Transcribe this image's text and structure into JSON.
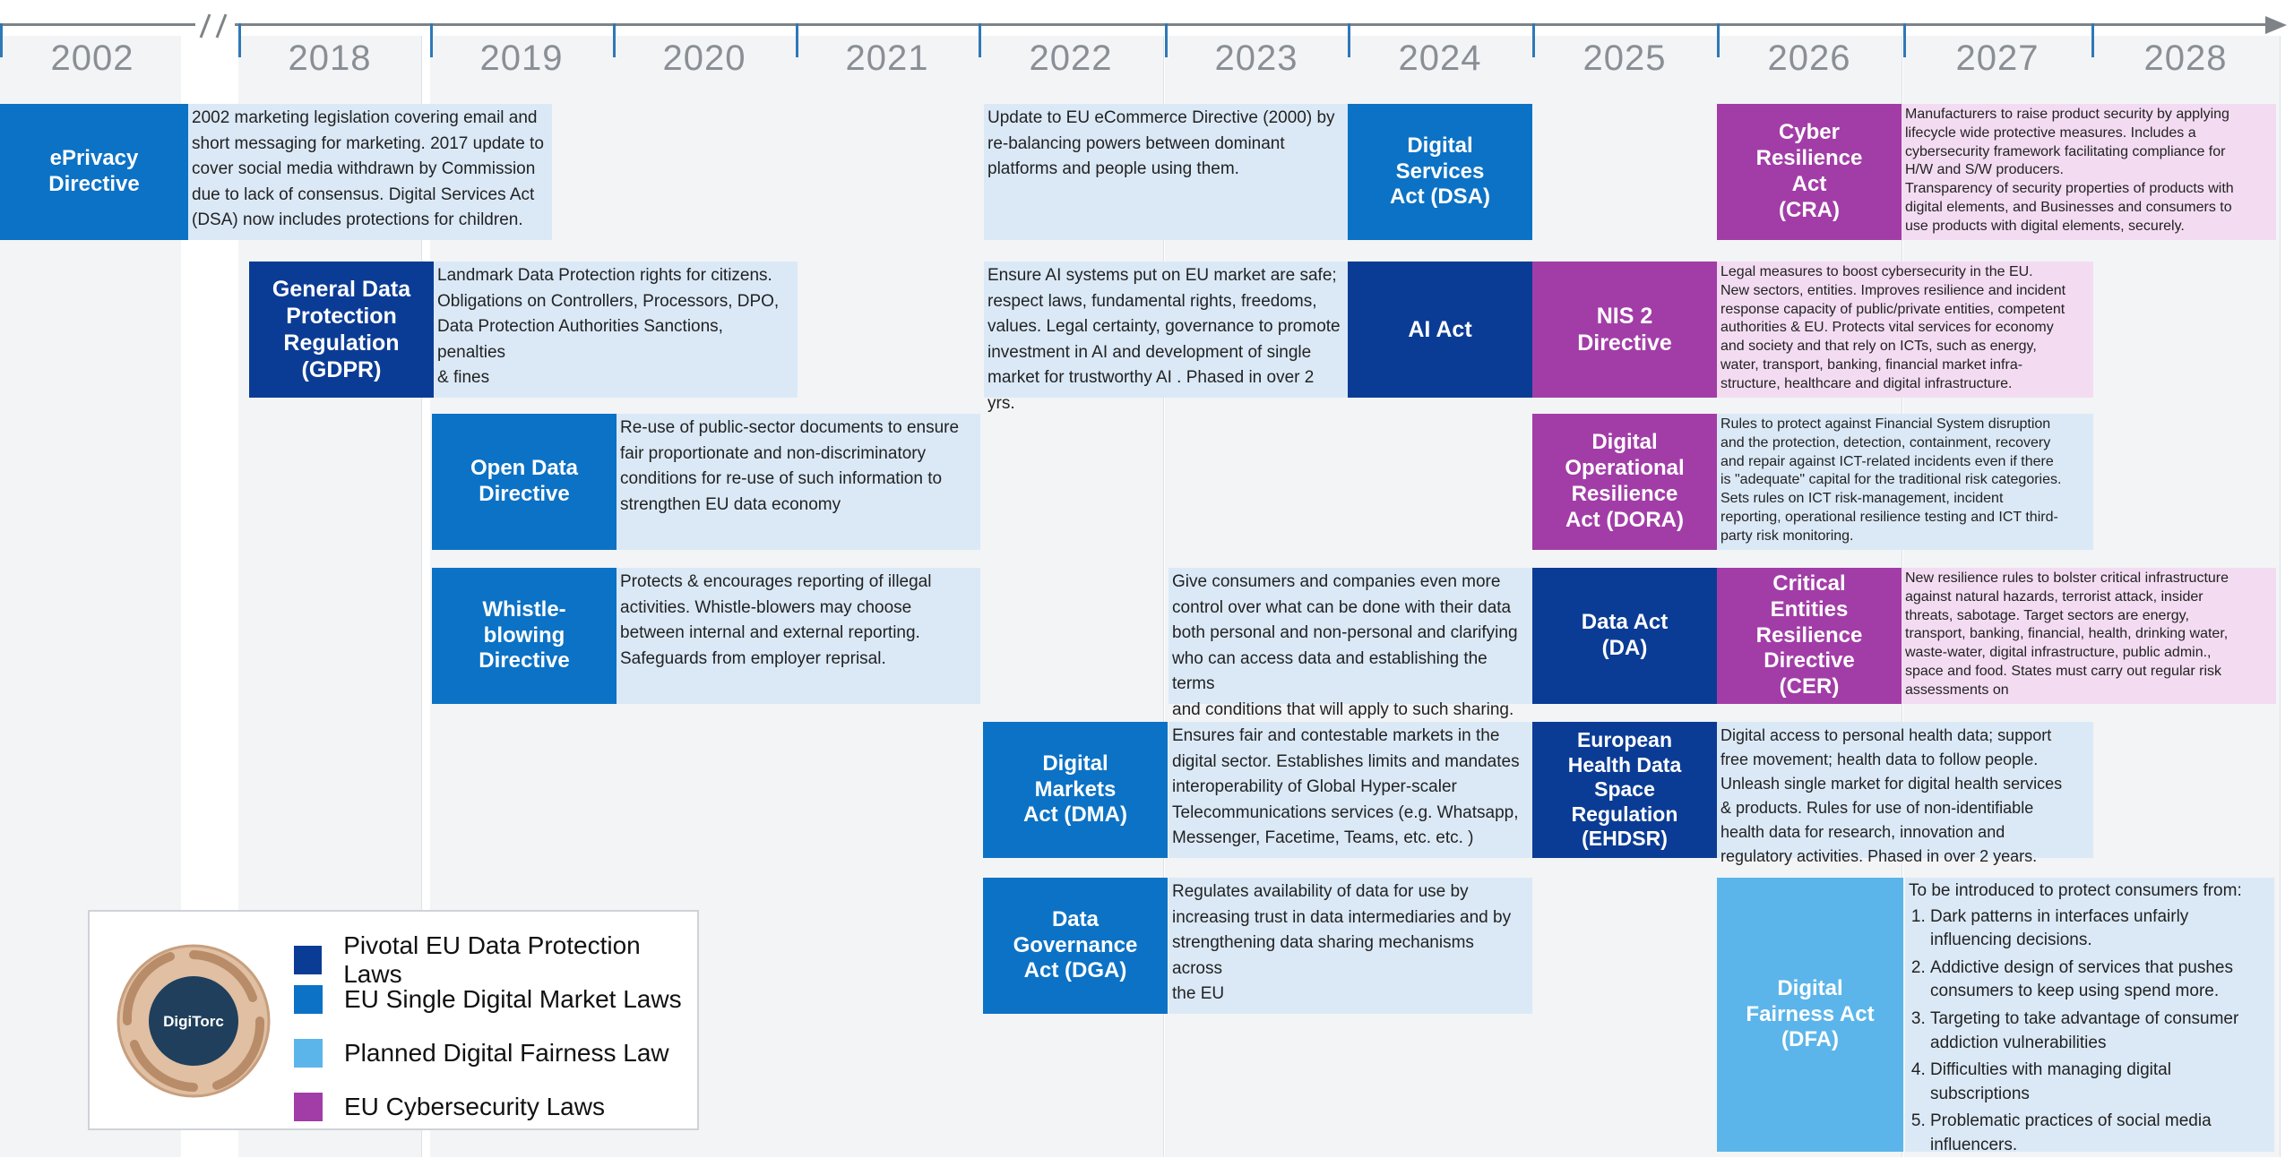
{
  "colors": {
    "pivotal": "#0b3c95",
    "single_market": "#0c72c5",
    "fairness": "#5bb5ea",
    "cyber": "#a23da7",
    "desc_blue": "#dbe9f7",
    "desc_pink": "#f3dcf2",
    "axis": "#7f8388",
    "tick": "#2f78b7",
    "year_text": "#8a8f96",
    "column_bg": "#f3f4f6",
    "logo_ring": "#e0bfa2",
    "logo_center": "#1f3f5c"
  },
  "timeline": {
    "years": [
      "2002",
      "2018",
      "2019",
      "2020",
      "2021",
      "2022",
      "2023",
      "2024",
      "2025",
      "2026",
      "2027",
      "2028"
    ]
  },
  "laws": [
    {
      "id": "eprivacy",
      "category": "single_market",
      "title": "ePrivacy\nDirective"
    },
    {
      "id": "gdpr",
      "category": "pivotal",
      "title": "General Data\nProtection\nRegulation\n(GDPR)"
    },
    {
      "id": "open-data",
      "category": "single_market",
      "title": "Open Data\nDirective"
    },
    {
      "id": "whistle",
      "category": "single_market",
      "title": "Whistle-\nblowing\nDirective"
    },
    {
      "id": "dsa",
      "category": "single_market",
      "title": "Digital\nServices\nAct (DSA)"
    },
    {
      "id": "ai-act",
      "category": "pivotal",
      "title": "AI Act"
    },
    {
      "id": "dma",
      "category": "single_market",
      "title": "Digital\nMarkets\nAct (DMA)"
    },
    {
      "id": "dga",
      "category": "single_market",
      "title": "Data\nGovernance\nAct (DGA)"
    },
    {
      "id": "nis2",
      "category": "cyber",
      "title": "NIS 2\nDirective"
    },
    {
      "id": "dora",
      "category": "cyber",
      "title": "Digital\nOperational\nResilience\nAct (DORA)"
    },
    {
      "id": "data-act",
      "category": "pivotal",
      "title": "Data Act\n(DA)"
    },
    {
      "id": "ehdsr",
      "category": "pivotal",
      "title": "European\nHealth Data\nSpace\nRegulation\n(EHDSR)"
    },
    {
      "id": "cra",
      "category": "cyber",
      "title": "Cyber\nResilience\nAct\n(CRA)"
    },
    {
      "id": "cer",
      "category": "cyber",
      "title": "Critical\nEntities\nResilience\nDirective\n(CER)"
    },
    {
      "id": "dfa",
      "category": "fairness",
      "title": "Digital\nFairness Act\n(DFA)"
    }
  ],
  "descriptions": [
    {
      "id": "eprivacy",
      "color": "desc_blue",
      "text": "2002 marketing legislation covering email and\nshort messaging for marketing. 2017 update to\ncover social media withdrawn by Commission\ndue to lack of consensus. Digital Services Act\n(DSA) now includes protections for children."
    },
    {
      "id": "gdpr",
      "color": "desc_blue",
      "text": "Landmark Data Protection rights for citizens.\nObligations on Controllers, Processors, DPO,\nData Protection Authorities Sanctions, penalties\n& fines"
    },
    {
      "id": "open-data",
      "color": "desc_blue",
      "text": "Re-use of public-sector documents to ensure\nfair proportionate and non-discriminatory\nconditions for re-use of such information to\nstrengthen EU data economy"
    },
    {
      "id": "whistle",
      "color": "desc_blue",
      "text": "Protects & encourages reporting of illegal\nactivities.  Whistle-blowers may choose\nbetween internal and external reporting.\nSafeguards from employer reprisal."
    },
    {
      "id": "dsa",
      "color": "desc_blue",
      "text": "Update to EU eCommerce Directive (2000) by\nre-balancing powers between dominant\nplatforms and people using them."
    },
    {
      "id": "ai-act",
      "color": "desc_blue",
      "text": "Ensure AI systems put on EU market are safe;\nrespect laws, fundamental rights, freedoms,\nvalues. Legal certainty, governance to promote\ninvestment in AI and development of single\nmarket for trustworthy AI . Phased in over 2 yrs."
    },
    {
      "id": "data-act",
      "color": "desc_blue",
      "text": "Give consumers and companies even more\ncontrol over what can be done with their data\nboth personal and non-personal and clarifying\nwho can access data and establishing the terms\nand conditions that will apply to such sharing."
    },
    {
      "id": "dma",
      "color": "desc_blue",
      "text": "Ensures fair and contestable markets in the\ndigital sector. Establishes limits and mandates\ninteroperability of Global Hyper-scaler\nTelecommunications services (e.g. Whatsapp,\nMessenger, Facetime, Teams, etc. etc. )"
    },
    {
      "id": "dga",
      "color": "desc_blue",
      "text": "Regulates availability of data for use by\nincreasing trust in data intermediaries and by\nstrengthening data sharing mechanisms across\nthe EU"
    },
    {
      "id": "cra",
      "color": "desc_pink",
      "text": "Manufacturers to raise product security by applying\nlifecycle wide protective measures. Includes a\ncybersecurity framework facilitating compliance for\nH/W and S/W producers.\nTransparency of security properties of products with\ndigital elements, and Businesses and consumers to\nuse products with digital elements, securely."
    },
    {
      "id": "nis2",
      "color": "desc_pink",
      "text": "Legal measures to boost cybersecurity in the EU.\nNew sectors, entities. Improves resilience and incident\nresponse capacity of public/private entities, competent\nauthorities & EU. Protects vital services for economy\nand society and that rely on ICTs, such as energy,\nwater,  transport, banking, financial market  infra-\nstructure, healthcare and digital infrastructure."
    },
    {
      "id": "dora",
      "color": "desc_blue",
      "text": "Rules to protect against Financial System disruption\nand the protection, detection, containment, recovery\nand repair against ICT-related incidents even if there\nis \"adequate\" capital for the traditional risk categories.\nSets rules on ICT risk-management, incident\nreporting, operational resilience testing and ICT third-\nparty risk monitoring."
    },
    {
      "id": "cer",
      "color": "desc_pink",
      "text": "New resilience rules to bolster critical infrastructure\nagainst natural hazards, terrorist attack, insider\nthreats, sabotage. Target sectors are energy,\ntransport, banking, financial, health, drinking water,\nwaste-water, digital infrastructure, public admin.,\nspace and food. States must carry out regular risk\nassessments on"
    },
    {
      "id": "ehdsr",
      "color": "desc_blue",
      "text": "Digital access to personal health data; support\nfree movement; health data to follow people.\nUnleash single market for digital health services\n& products. Rules for use of non-identifiable\nhealth data for research, innovation  and\nregulatory activities. Phased in over 2 years."
    }
  ],
  "dfa_description": {
    "intro": "To be introduced to protect consumers from:",
    "items": [
      "Dark patterns in interfaces unfairly influencing decisions.",
      "Addictive design of services that pushes consumers to keep using spend more.",
      "Targeting to take advantage of consumer addiction vulnerabilities",
      "Difficulties with managing digital subscriptions",
      "Problematic practices of social media influencers."
    ]
  },
  "legend": {
    "logo_text": "DigiTorc",
    "items": [
      {
        "label": "Pivotal EU Data Protection Laws",
        "color": "pivotal"
      },
      {
        "label": "EU Single  Digital Market Laws",
        "color": "single_market"
      },
      {
        "label": "Planned Digital Fairness Law",
        "color": "fairness"
      },
      {
        "label": "EU Cybersecurity Laws",
        "color": "cyber"
      }
    ]
  }
}
